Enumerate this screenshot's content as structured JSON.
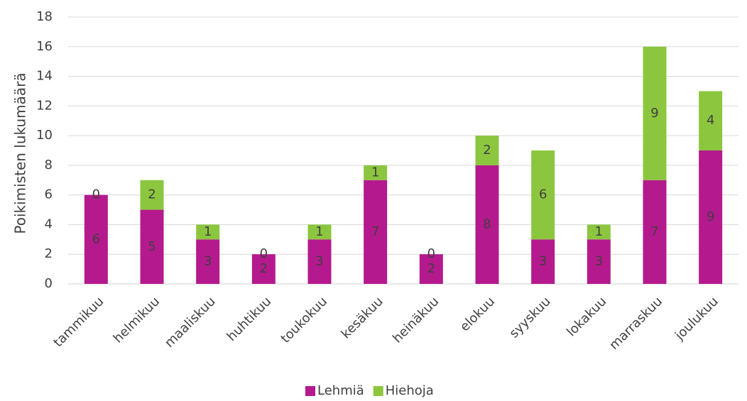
{
  "chart_data": {
    "type": "bar",
    "stacked": true,
    "categories": [
      "tammikuu",
      "helmikuu",
      "maaliskuu",
      "huhtikuu",
      "toukokuu",
      "kesäkuu",
      "heinäkuu",
      "elokuu",
      "syyskuu",
      "lokakuu",
      "marraskuu",
      "joulukuu"
    ],
    "series": [
      {
        "name": "Lehmiä",
        "values": [
          6,
          5,
          3,
          2,
          3,
          7,
          2,
          8,
          3,
          3,
          7,
          9
        ],
        "color": "#B5198E"
      },
      {
        "name": "Hiehoja",
        "values": [
          0,
          2,
          1,
          0,
          1,
          1,
          0,
          2,
          6,
          1,
          9,
          4
        ],
        "color": "#8CC63F"
      }
    ],
    "title": "",
    "xlabel": "",
    "ylabel": "Poikimisten lukumäärä",
    "ylim": [
      0,
      18
    ],
    "yticks": [
      0,
      2,
      4,
      6,
      8,
      10,
      12,
      14,
      16,
      18
    ],
    "grid": true,
    "legend": "bottom-center",
    "data_labels": true
  }
}
